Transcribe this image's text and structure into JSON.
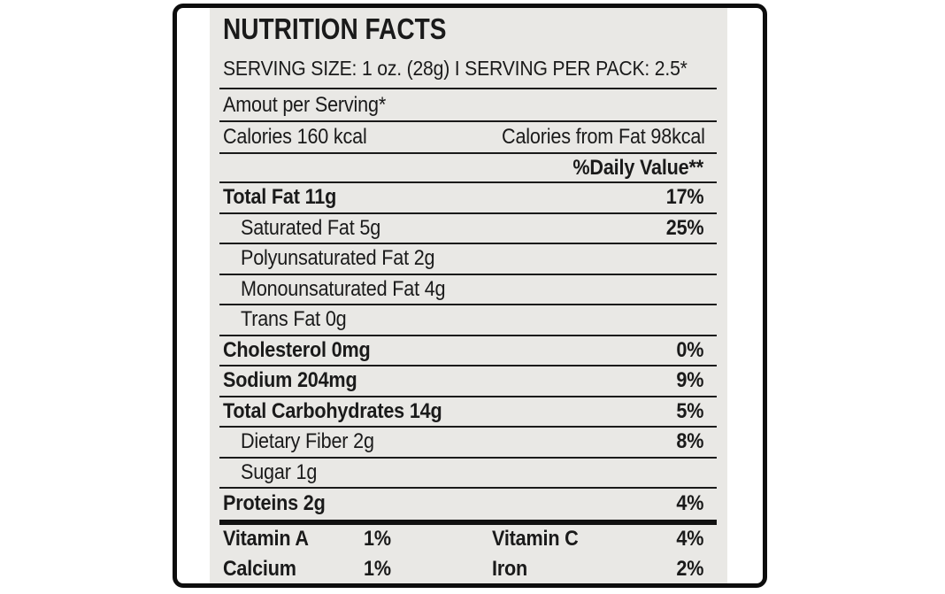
{
  "label": {
    "title": "NUTRITION FACTS",
    "serving_line": "SERVING SIZE: 1 oz. (28g) I SERVING PER PACK: 2.5*",
    "amount_per_serving": "Amout per Serving*",
    "calories_left": "Calories 160 kcal",
    "calories_right": "Calories from Fat 98kcal",
    "daily_value_header": "%Daily Value**",
    "rows": [
      {
        "label": "Total Fat 11g",
        "percent": "17%",
        "bold": true,
        "indent": false
      },
      {
        "label": "Saturated Fat 5g",
        "percent": "25%",
        "bold": false,
        "indent": true
      },
      {
        "label": "Polyunsaturated Fat 2g",
        "percent": "",
        "bold": false,
        "indent": true
      },
      {
        "label": "Monounsaturated Fat 4g",
        "percent": "",
        "bold": false,
        "indent": true
      },
      {
        "label": "Trans Fat 0g",
        "percent": "",
        "bold": false,
        "indent": true
      },
      {
        "label": "Cholesterol 0mg",
        "percent": "0%",
        "bold": true,
        "indent": false
      },
      {
        "label": "Sodium 204mg",
        "percent": "9%",
        "bold": true,
        "indent": false
      },
      {
        "label": "Total Carbohydrates 14g",
        "percent": "5%",
        "bold": true,
        "indent": false
      },
      {
        "label": "Dietary Fiber 2g",
        "percent": "8%",
        "bold": false,
        "indent": true
      },
      {
        "label": "Sugar 1g",
        "percent": "",
        "bold": false,
        "indent": true
      },
      {
        "label": "Proteins 2g",
        "percent": "4%",
        "bold": true,
        "indent": false
      }
    ],
    "vitamins": [
      {
        "name": "Vitamin A",
        "value": "1%",
        "name2": "Vitamin C",
        "value2": "4%"
      },
      {
        "name": "Calcium",
        "value": "1%",
        "name2": "Iron",
        "value2": "2%"
      }
    ]
  },
  "colors": {
    "paper": "#e9e8e5",
    "text": "#1a1a1a",
    "frame_border": "#0d0d0d",
    "background": "#ffffff"
  }
}
